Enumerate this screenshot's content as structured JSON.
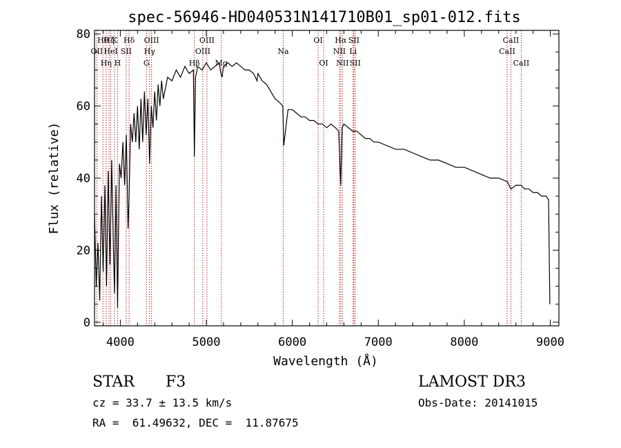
{
  "chart_data": {
    "type": "line",
    "title": "spec-56946-HD040531N141710B01_sp01-012.fits",
    "xlabel": "Wavelength (Å)",
    "ylabel": "Flux (relative)",
    "xlim": [
      3700,
      9100
    ],
    "ylim": [
      -1,
      81
    ],
    "xticks": [
      4000,
      5000,
      6000,
      7000,
      8000,
      9000
    ],
    "yticks": [
      0,
      20,
      40,
      60,
      80
    ],
    "grid": false,
    "line_color": "#000000",
    "marker_color": "#b22222",
    "series": [
      {
        "x": [
          3700,
          3720,
          3740,
          3760,
          3780,
          3800,
          3820,
          3840,
          3860,
          3880,
          3900,
          3920,
          3933,
          3950,
          3968,
          3990,
          4010,
          4030,
          4050,
          4070,
          4090,
          4101,
          4120,
          4140,
          4160,
          4180,
          4200,
          4220,
          4240,
          4260,
          4280,
          4300,
          4320,
          4340,
          4360,
          4380,
          4400,
          4420,
          4440,
          4460,
          4480,
          4500,
          4550,
          4600,
          4650,
          4700,
          4750,
          4800,
          4850,
          4861,
          4875,
          4900,
          4950,
          5000,
          5050,
          5100,
          5150,
          5170,
          5183,
          5200,
          5250,
          5300,
          5350,
          5400,
          5450,
          5500,
          5550,
          5570,
          5590,
          5600,
          5650,
          5700,
          5750,
          5800,
          5850,
          5890,
          5900,
          5950,
          6000,
          6050,
          6100,
          6150,
          6200,
          6250,
          6300,
          6350,
          6400,
          6450,
          6500,
          6540,
          6563,
          6580,
          6600,
          6650,
          6700,
          6750,
          6800,
          6850,
          6900,
          6950,
          7000,
          7100,
          7200,
          7300,
          7400,
          7500,
          7600,
          7700,
          7800,
          7900,
          8000,
          8100,
          8200,
          8300,
          8400,
          8500,
          8542,
          8600,
          8662,
          8700,
          8750,
          8800,
          8850,
          8900,
          8950,
          8980,
          8995
        ],
        "y": [
          30,
          10,
          22,
          6,
          35,
          14,
          38,
          10,
          42,
          16,
          45,
          20,
          8,
          38,
          4,
          44,
          40,
          50,
          38,
          52,
          26,
          34,
          55,
          50,
          58,
          50,
          60,
          48,
          62,
          50,
          64,
          52,
          62,
          44,
          60,
          54,
          64,
          56,
          66,
          60,
          67,
          62,
          68,
          67,
          70,
          68,
          71,
          69,
          70,
          46,
          68,
          71,
          70,
          72,
          70,
          71,
          72,
          69,
          68,
          71,
          72,
          71,
          72,
          71,
          70,
          70,
          69,
          68,
          67,
          69,
          67,
          66,
          64,
          62,
          61,
          60,
          49,
          59,
          59,
          58,
          57,
          57,
          56,
          56,
          55,
          55,
          54,
          55,
          54,
          53,
          38,
          54,
          55,
          54,
          53,
          53,
          52,
          51,
          51,
          50,
          50,
          49,
          48,
          48,
          47,
          46,
          45,
          45,
          44,
          43,
          43,
          42,
          41,
          40,
          40,
          39,
          37,
          38,
          38,
          37,
          37,
          36,
          36,
          35,
          35,
          34,
          5
        ]
      }
    ],
    "line_markers": [
      {
        "x": 3727,
        "label": "OII",
        "row": 2
      },
      {
        "x": 3798,
        "label": "Hθ",
        "row": 1
      },
      {
        "x": 3835,
        "label": "Hη",
        "row": 3
      },
      {
        "x": 3869,
        "label": "Hζ",
        "row": 1
      },
      {
        "x": 3889,
        "label": "HeI",
        "row": 2
      },
      {
        "x": 3933,
        "label": "K",
        "row": 1
      },
      {
        "x": 3968,
        "label": "H",
        "row": 3
      },
      {
        "x": 4068,
        "label": "SII",
        "row": 2
      },
      {
        "x": 4102,
        "label": "Hδ",
        "row": 1
      },
      {
        "x": 4304,
        "label": "G",
        "row": 3
      },
      {
        "x": 4340,
        "label": "Hγ",
        "row": 2
      },
      {
        "x": 4363,
        "label": "OIII",
        "row": 1
      },
      {
        "x": 4861,
        "label": "Hβ",
        "row": 3
      },
      {
        "x": 4959,
        "label": "OIII",
        "row": 2
      },
      {
        "x": 5007,
        "label": "OIII",
        "row": 1
      },
      {
        "x": 5175,
        "label": "Mg",
        "row": 3
      },
      {
        "x": 5894,
        "label": "Na",
        "row": 2
      },
      {
        "x": 6300,
        "label": "OI",
        "row": 1
      },
      {
        "x": 6364,
        "label": "OI",
        "row": 3
      },
      {
        "x": 6548,
        "label": "NII",
        "row": 2
      },
      {
        "x": 6563,
        "label": "Hα",
        "row": 1
      },
      {
        "x": 6583,
        "label": "NII",
        "row": 3
      },
      {
        "x": 6707,
        "label": "Li",
        "row": 2
      },
      {
        "x": 6716,
        "label": "SII",
        "row": 1
      },
      {
        "x": 6731,
        "label": "SII",
        "row": 3
      },
      {
        "x": 8498,
        "label": "CaII",
        "row": 2
      },
      {
        "x": 8542,
        "label": "CaII",
        "row": 1
      },
      {
        "x": 8662,
        "label": "CaII",
        "row": 3
      }
    ]
  },
  "info": {
    "class_label": "STAR",
    "subclass": "F3",
    "survey": "LAMOST DR3",
    "cz": "cz = 33.7 ± 13.5 km/s",
    "obs_date": "Obs-Date: 20141015",
    "coords": "RA =  61.49632, DEC =  11.87675"
  }
}
